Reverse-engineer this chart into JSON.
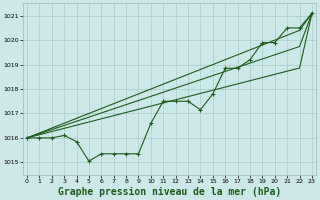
{
  "background_color": "#cde8e8",
  "grid_color": "#aacccc",
  "line_color": "#1a5c1a",
  "xlabel": "Graphe pression niveau de la mer (hPa)",
  "xlabel_fontsize": 7,
  "ylim": [
    1014.5,
    1021.5
  ],
  "xlim": [
    -0.3,
    23.3
  ],
  "yticks": [
    1015,
    1016,
    1017,
    1018,
    1019,
    1020,
    1021
  ],
  "xticks": [
    0,
    1,
    2,
    3,
    4,
    5,
    6,
    7,
    8,
    9,
    10,
    11,
    12,
    13,
    14,
    15,
    16,
    17,
    18,
    19,
    20,
    21,
    22,
    23
  ],
  "jagged": [
    1016.0,
    1016.0,
    1016.0,
    1016.1,
    1015.85,
    1015.05,
    1015.35,
    1015.35,
    1015.35,
    1015.35,
    1016.6,
    1017.5,
    1017.5,
    1017.5,
    1017.15,
    1017.8,
    1018.85,
    1018.85,
    1019.2,
    1019.9,
    1019.9,
    1020.5,
    1020.5,
    1021.1
  ],
  "trend1": [
    1016.0,
    1016.13,
    1016.26,
    1016.39,
    1016.52,
    1016.65,
    1016.78,
    1016.91,
    1017.04,
    1017.17,
    1017.3,
    1017.43,
    1017.56,
    1017.69,
    1017.82,
    1017.95,
    1018.08,
    1018.21,
    1018.34,
    1018.47,
    1018.6,
    1018.73,
    1018.86,
    1021.1
  ],
  "trend2": [
    1016.0,
    1016.17,
    1016.34,
    1016.51,
    1016.68,
    1016.85,
    1017.02,
    1017.19,
    1017.36,
    1017.53,
    1017.7,
    1017.87,
    1018.04,
    1018.21,
    1018.38,
    1018.55,
    1018.72,
    1018.89,
    1019.06,
    1019.23,
    1019.4,
    1019.57,
    1019.74,
    1021.1
  ],
  "trend3": [
    1016.0,
    1016.2,
    1016.4,
    1016.6,
    1016.8,
    1017.0,
    1017.2,
    1017.4,
    1017.6,
    1017.8,
    1018.0,
    1018.2,
    1018.4,
    1018.6,
    1018.8,
    1019.0,
    1019.2,
    1019.4,
    1019.6,
    1019.8,
    1020.0,
    1020.2,
    1020.4,
    1021.1
  ]
}
